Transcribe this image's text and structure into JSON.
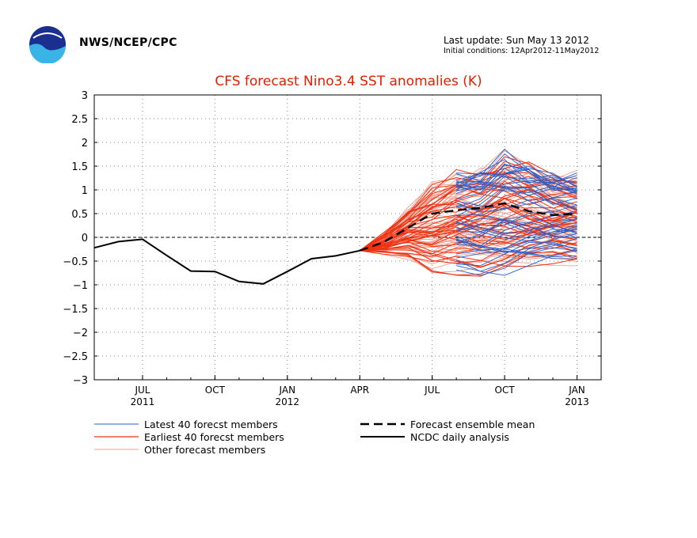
{
  "header": {
    "agency": "NWS/NCEP/CPC",
    "last_update": "Last update: Sun May 13 2012",
    "initial_conditions": "Initial conditions: 12Apr2012-11May2012"
  },
  "colors": {
    "latest": "#1f5fd0",
    "earliest": "#f03010",
    "other": "#f0a090",
    "title": "#e02000",
    "analysis": "#000000",
    "mean": "#000000"
  },
  "chart_data": {
    "type": "line",
    "title": "CFS forecast Nino3.4 SST anomalies (K)",
    "ylim": [
      -3,
      3
    ],
    "yticks": [
      3,
      2.5,
      2,
      1.5,
      1,
      0.5,
      0,
      -0.5,
      -1,
      -1.5,
      -2,
      -2.5,
      -3
    ],
    "ytick_labels": [
      "3",
      "2.5",
      "2",
      "1.5",
      "1",
      "0.5",
      "0",
      "−0.5",
      "−1",
      "−1.5",
      "−2",
      "−2.5",
      "−3"
    ],
    "x_unit": "month",
    "xlim": [
      "2011-05",
      "2013-02"
    ],
    "xticks": [
      "2011-07",
      "2011-10",
      "2012-01",
      "2012-04",
      "2012-07",
      "2012-10",
      "2013-01"
    ],
    "xtick_labels": [
      {
        "month": "JUL",
        "year": "2011"
      },
      {
        "month": "OCT",
        "year": ""
      },
      {
        "month": "JAN",
        "year": "2012"
      },
      {
        "month": "APR",
        "year": ""
      },
      {
        "month": "JUL",
        "year": ""
      },
      {
        "month": "OCT",
        "year": ""
      },
      {
        "month": "JAN",
        "year": "2013"
      }
    ],
    "grid": true,
    "zero_line": true,
    "legend": [
      {
        "label": "Latest 40 forecst members",
        "style": "latest"
      },
      {
        "label": "Earliest 40 forecst members",
        "style": "earliest"
      },
      {
        "label": "Other forecast members",
        "style": "other"
      },
      {
        "label": "Forecast ensemble mean",
        "style": "mean"
      },
      {
        "label": "NCDC daily analysis",
        "style": "analysis"
      }
    ],
    "analysis": {
      "x": [
        "2011-05",
        "2011-06",
        "2011-07",
        "2011-08",
        "2011-09",
        "2011-10",
        "2011-11",
        "2011-12",
        "2012-01",
        "2012-02",
        "2012-03",
        "2012-04"
      ],
      "y": [
        -0.22,
        -0.09,
        -0.04,
        -0.38,
        -0.71,
        -0.72,
        -0.93,
        -0.98,
        -0.72,
        -0.45,
        -0.39,
        -0.28
      ]
    },
    "ensemble_mean": {
      "x": [
        "2012-04",
        "2012-05",
        "2012-06",
        "2012-07",
        "2012-08",
        "2012-09",
        "2012-10",
        "2012-11",
        "2012-12",
        "2013-01"
      ],
      "y": [
        -0.28,
        -0.1,
        0.2,
        0.5,
        0.57,
        0.62,
        0.72,
        0.55,
        0.47,
        0.5
      ]
    },
    "members": {
      "start": "2012-04",
      "start_value": -0.28,
      "latest": {
        "count": 40,
        "tail_months": 5
      },
      "earliest": {
        "count": 40
      },
      "other": {
        "count": 60
      },
      "envelope": {
        "x": [
          "2012-05",
          "2012-06",
          "2012-07",
          "2012-08",
          "2012-09",
          "2012-10",
          "2012-11",
          "2012-12",
          "2013-01"
        ],
        "min": [
          -0.4,
          -0.55,
          -0.9,
          -0.95,
          -1.05,
          -1.05,
          -0.85,
          -0.75,
          -0.75
        ],
        "max": [
          0.15,
          0.75,
          1.3,
          1.6,
          1.75,
          2.05,
          1.8,
          1.6,
          1.55
        ]
      }
    }
  }
}
